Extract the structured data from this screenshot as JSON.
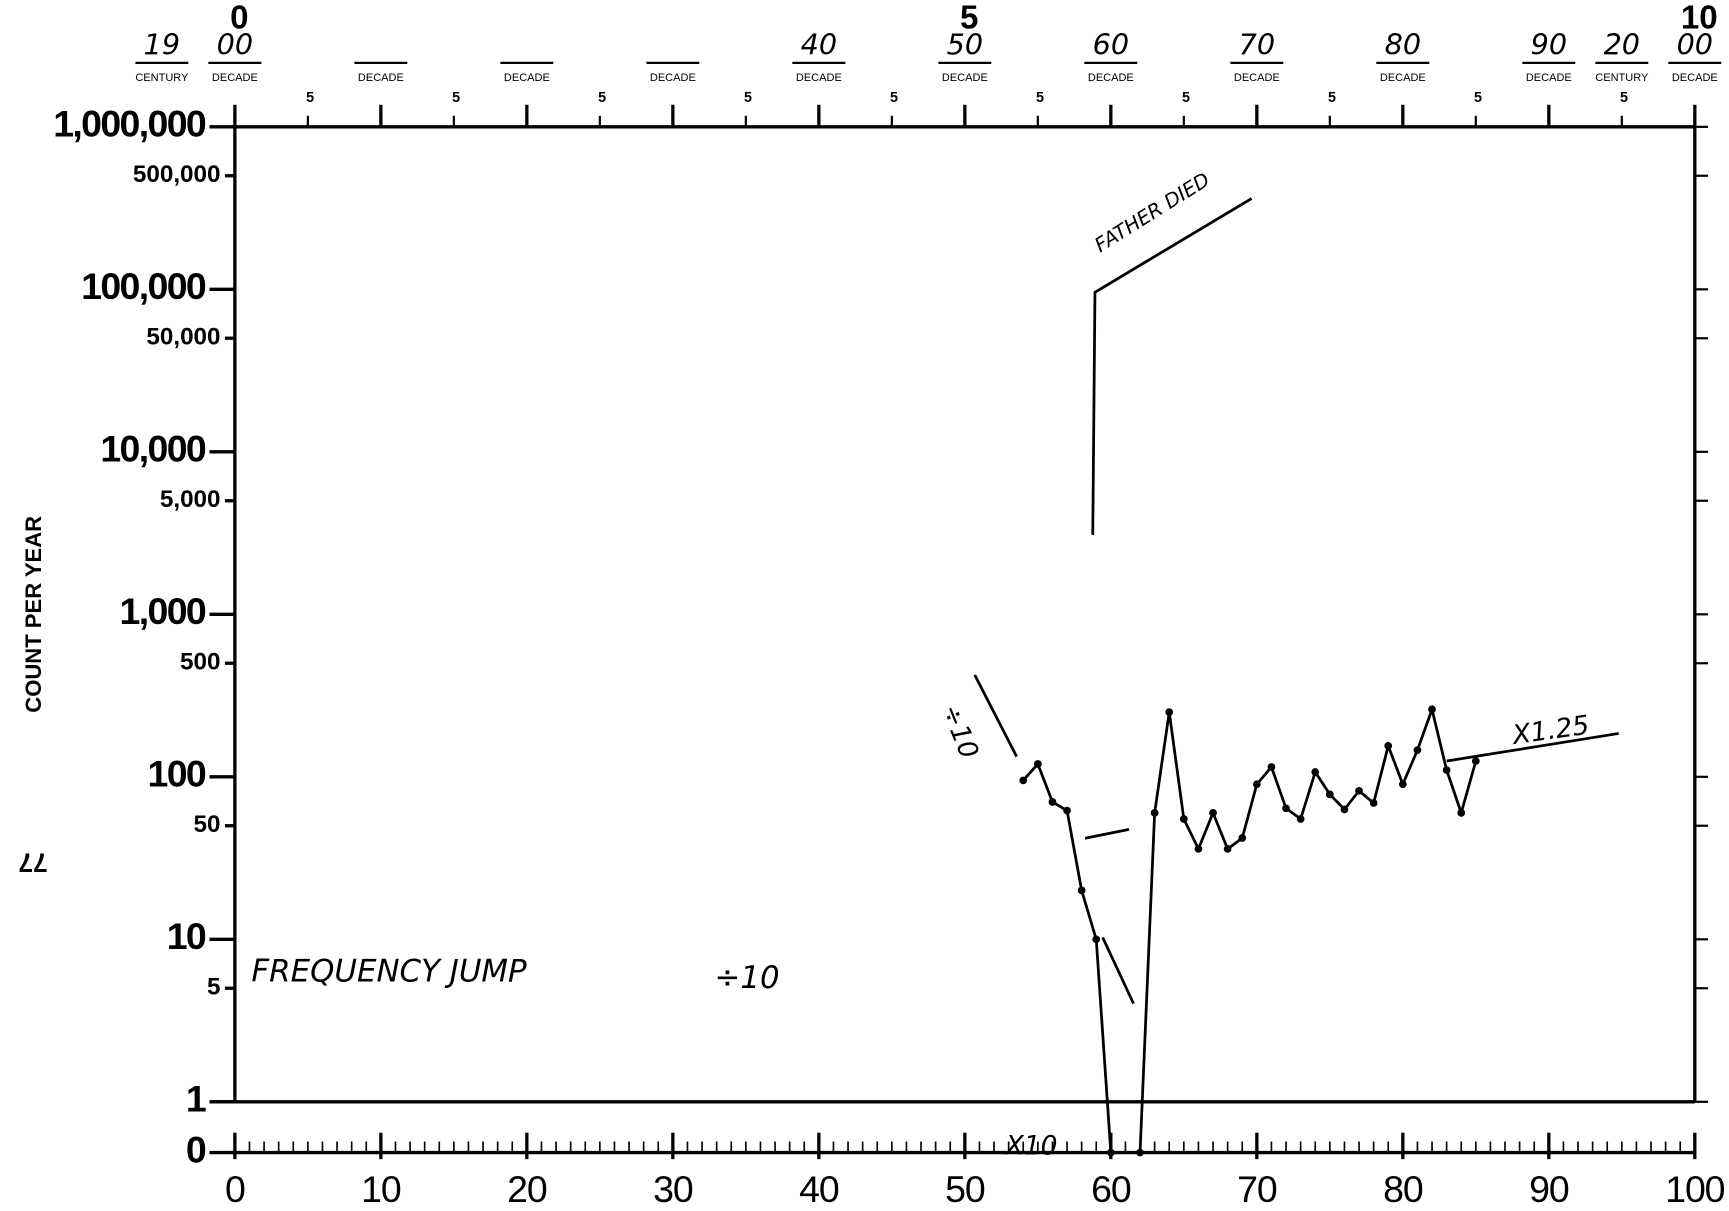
{
  "chart_data": {
    "type": "line",
    "y_axis_label": "COUNT PER YEAR",
    "page_number": "77",
    "log_scale": true,
    "xlim": [
      0,
      100
    ],
    "ylim": [
      1,
      1000000
    ],
    "xticks": [
      0,
      10,
      20,
      30,
      40,
      50,
      60,
      70,
      80,
      90,
      100
    ],
    "yticks": [
      {
        "value": 1000000,
        "label": "1,000,000"
      },
      {
        "value": 500000,
        "label": "500,000"
      },
      {
        "value": 100000,
        "label": "100,000"
      },
      {
        "value": 50000,
        "label": "50,000"
      },
      {
        "value": 10000,
        "label": "10,000"
      },
      {
        "value": 5000,
        "label": "5,000"
      },
      {
        "value": 1000,
        "label": "1,000"
      },
      500,
      100,
      50,
      10,
      5,
      1,
      0
    ],
    "top_axis": {
      "big_numbers": [
        "0",
        "5",
        "10"
      ],
      "half_labels": [
        "5",
        "5",
        "5",
        "5",
        "5",
        "5",
        "5",
        "5",
        "5",
        "5"
      ],
      "decades": [
        {
          "label": "DECADE",
          "handwritten": "00"
        },
        {
          "label": "DECADE",
          "handwritten": null
        },
        {
          "label": "DECADE",
          "handwritten": null
        },
        {
          "label": "DECADE",
          "handwritten": null
        },
        {
          "label": "DECADE",
          "handwritten": "40"
        },
        {
          "label": "DECADE",
          "handwritten": "50"
        },
        {
          "label": "DECADE",
          "handwritten": "60"
        },
        {
          "label": "DECADE",
          "handwritten": "70"
        },
        {
          "label": "DECADE",
          "handwritten": "80"
        },
        {
          "label": "DECADE",
          "handwritten": "90"
        },
        {
          "label": "DECADE",
          "handwritten": "00"
        }
      ],
      "centuries": [
        {
          "label": "CENTURY",
          "handwritten": "19"
        },
        {
          "label": "CENTURY",
          "handwritten": "20"
        }
      ]
    },
    "annotations": [
      "FATHER DIED",
      "÷10",
      "X1.25",
      "FREQUENCY JUMP",
      "÷10",
      "X10"
    ],
    "series": [
      {
        "name": "Count per year",
        "color": "#000000",
        "x": [
          54,
          55,
          56,
          57,
          58,
          59,
          60,
          62,
          63,
          64,
          65,
          66,
          67,
          68,
          69,
          70,
          71,
          72,
          73,
          74,
          75,
          76,
          77,
          78,
          79,
          80,
          81,
          82,
          83,
          84,
          85
        ],
        "values": [
          95,
          120,
          70,
          62,
          20,
          10,
          0,
          0,
          60,
          250,
          55,
          36,
          60,
          36,
          42,
          90,
          115,
          64,
          55,
          107,
          78,
          63,
          82,
          69,
          155,
          90,
          146,
          260,
          110,
          60,
          125
        ]
      }
    ]
  }
}
